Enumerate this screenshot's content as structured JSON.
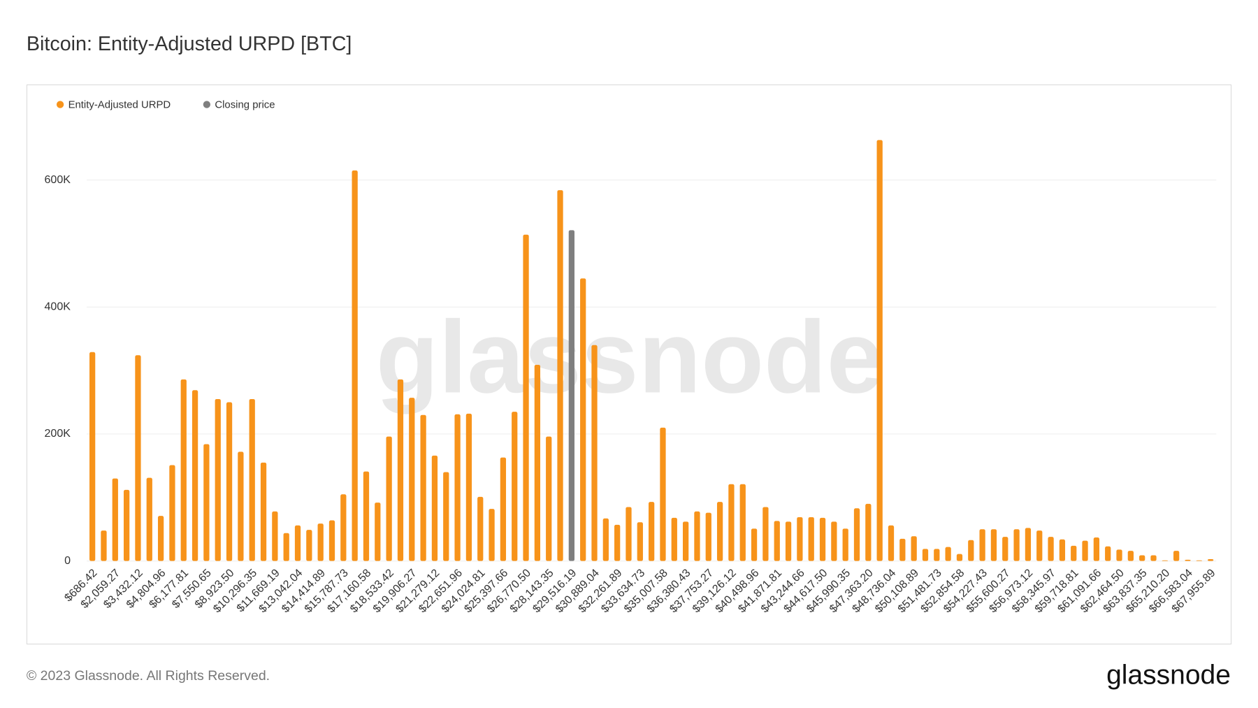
{
  "chart_data": {
    "type": "bar",
    "title": "Bitcoin: Entity-Adjusted URPD [BTC]",
    "watermark": "glassnode",
    "categories": [
      "$686.42",
      null,
      "$2,059.27",
      null,
      "$3,432.12",
      null,
      "$4,804.96",
      null,
      "$6,177.81",
      null,
      "$7,550.65",
      null,
      "$8,923.50",
      null,
      "$10,296.35",
      null,
      "$11,669.19",
      null,
      "$13,042.04",
      null,
      "$14,414.89",
      null,
      "$15,787.73",
      null,
      "$17,160.58",
      null,
      "$18,533.42",
      null,
      "$19,906.27",
      null,
      "$21,279.12",
      null,
      "$22,651.96",
      null,
      "$24,024.81",
      null,
      "$25,397.66",
      null,
      "$26,770.50",
      null,
      "$28,143.35",
      null,
      "$29,516.19",
      null,
      "$30,889.04",
      null,
      "$32,261.89",
      null,
      "$33,634.73",
      null,
      "$35,007.58",
      null,
      "$36,380.43",
      null,
      "$37,753.27",
      null,
      "$39,126.12",
      null,
      "$40,498.96",
      null,
      "$41,871.81",
      null,
      "$43,244.66",
      null,
      "$44,617.50",
      null,
      "$45,990.35",
      null,
      "$47,363.20",
      null,
      "$48,736.04",
      null,
      "$50,108.89",
      null,
      "$51,481.73",
      null,
      "$52,854.58",
      null,
      "$54,227.43",
      null,
      "$55,600.27",
      null,
      "$56,973.12",
      null,
      "$58,345.97",
      null,
      "$59,718.81",
      null,
      "$61,091.66",
      null,
      "$62,464.50",
      null,
      "$63,837.35",
      null,
      "$65,210.20",
      null,
      "$66,583.04",
      null,
      "$67,955.89"
    ],
    "series": [
      {
        "name": "Entity-Adjusted URPD",
        "color": "#f7931a",
        "values": [
          329000,
          48000,
          130000,
          112000,
          324000,
          131000,
          71000,
          151000,
          286000,
          269000,
          184000,
          255000,
          250000,
          172000,
          255000,
          155000,
          78000,
          44000,
          56000,
          49000,
          59000,
          64000,
          105000,
          615000,
          141000,
          92000,
          196000,
          286000,
          257000,
          230000,
          166000,
          140000,
          231000,
          232000,
          101000,
          82000,
          163000,
          235000,
          514000,
          309000,
          196000,
          584000,
          null,
          445000,
          340000,
          67000,
          57000,
          85000,
          61000,
          93000,
          210000,
          68000,
          62000,
          78000,
          76000,
          93000,
          121000,
          121000,
          51000,
          85000,
          63000,
          62000,
          69000,
          69000,
          68000,
          62000,
          51000,
          83000,
          90000,
          663000,
          56000,
          35000,
          39000,
          19000,
          19000,
          22000,
          11000,
          33000,
          50000,
          50000,
          38000,
          50000,
          52000,
          48000,
          38000,
          34000,
          24000,
          32000,
          37000,
          23000,
          18000,
          16000,
          9000,
          9000,
          1000,
          16000,
          2000,
          1000,
          3000
        ]
      },
      {
        "name": "Closing price",
        "color": "#7f7f7f",
        "values": [
          null,
          null,
          null,
          null,
          null,
          null,
          null,
          null,
          null,
          null,
          null,
          null,
          null,
          null,
          null,
          null,
          null,
          null,
          null,
          null,
          null,
          null,
          null,
          null,
          null,
          null,
          null,
          null,
          null,
          null,
          null,
          null,
          null,
          null,
          null,
          null,
          null,
          null,
          null,
          null,
          null,
          null,
          521000,
          null,
          null,
          null,
          null,
          null,
          null,
          null,
          null,
          null,
          null,
          null,
          null,
          null,
          null,
          null,
          null,
          null,
          null,
          null,
          null,
          null,
          null,
          null,
          null,
          null,
          null,
          null,
          null,
          null,
          null,
          null,
          null,
          null,
          null,
          null,
          null,
          null,
          null,
          null,
          null,
          null,
          null,
          null,
          null,
          null,
          null,
          null,
          null,
          null,
          null,
          null,
          null,
          null,
          null,
          null,
          null
        ]
      }
    ],
    "ylim": [
      0,
      700000
    ],
    "yticks": [
      0,
      {
        "value": 200000,
        "label": "200K"
      },
      {
        "value": 400000,
        "label": "400K"
      },
      {
        "value": 600000,
        "label": "600K"
      }
    ],
    "grid": true,
    "legend": "top-left"
  },
  "footer": {
    "copyright": "© 2023 Glassnode. All Rights Reserved.",
    "logo": "glassnode"
  }
}
